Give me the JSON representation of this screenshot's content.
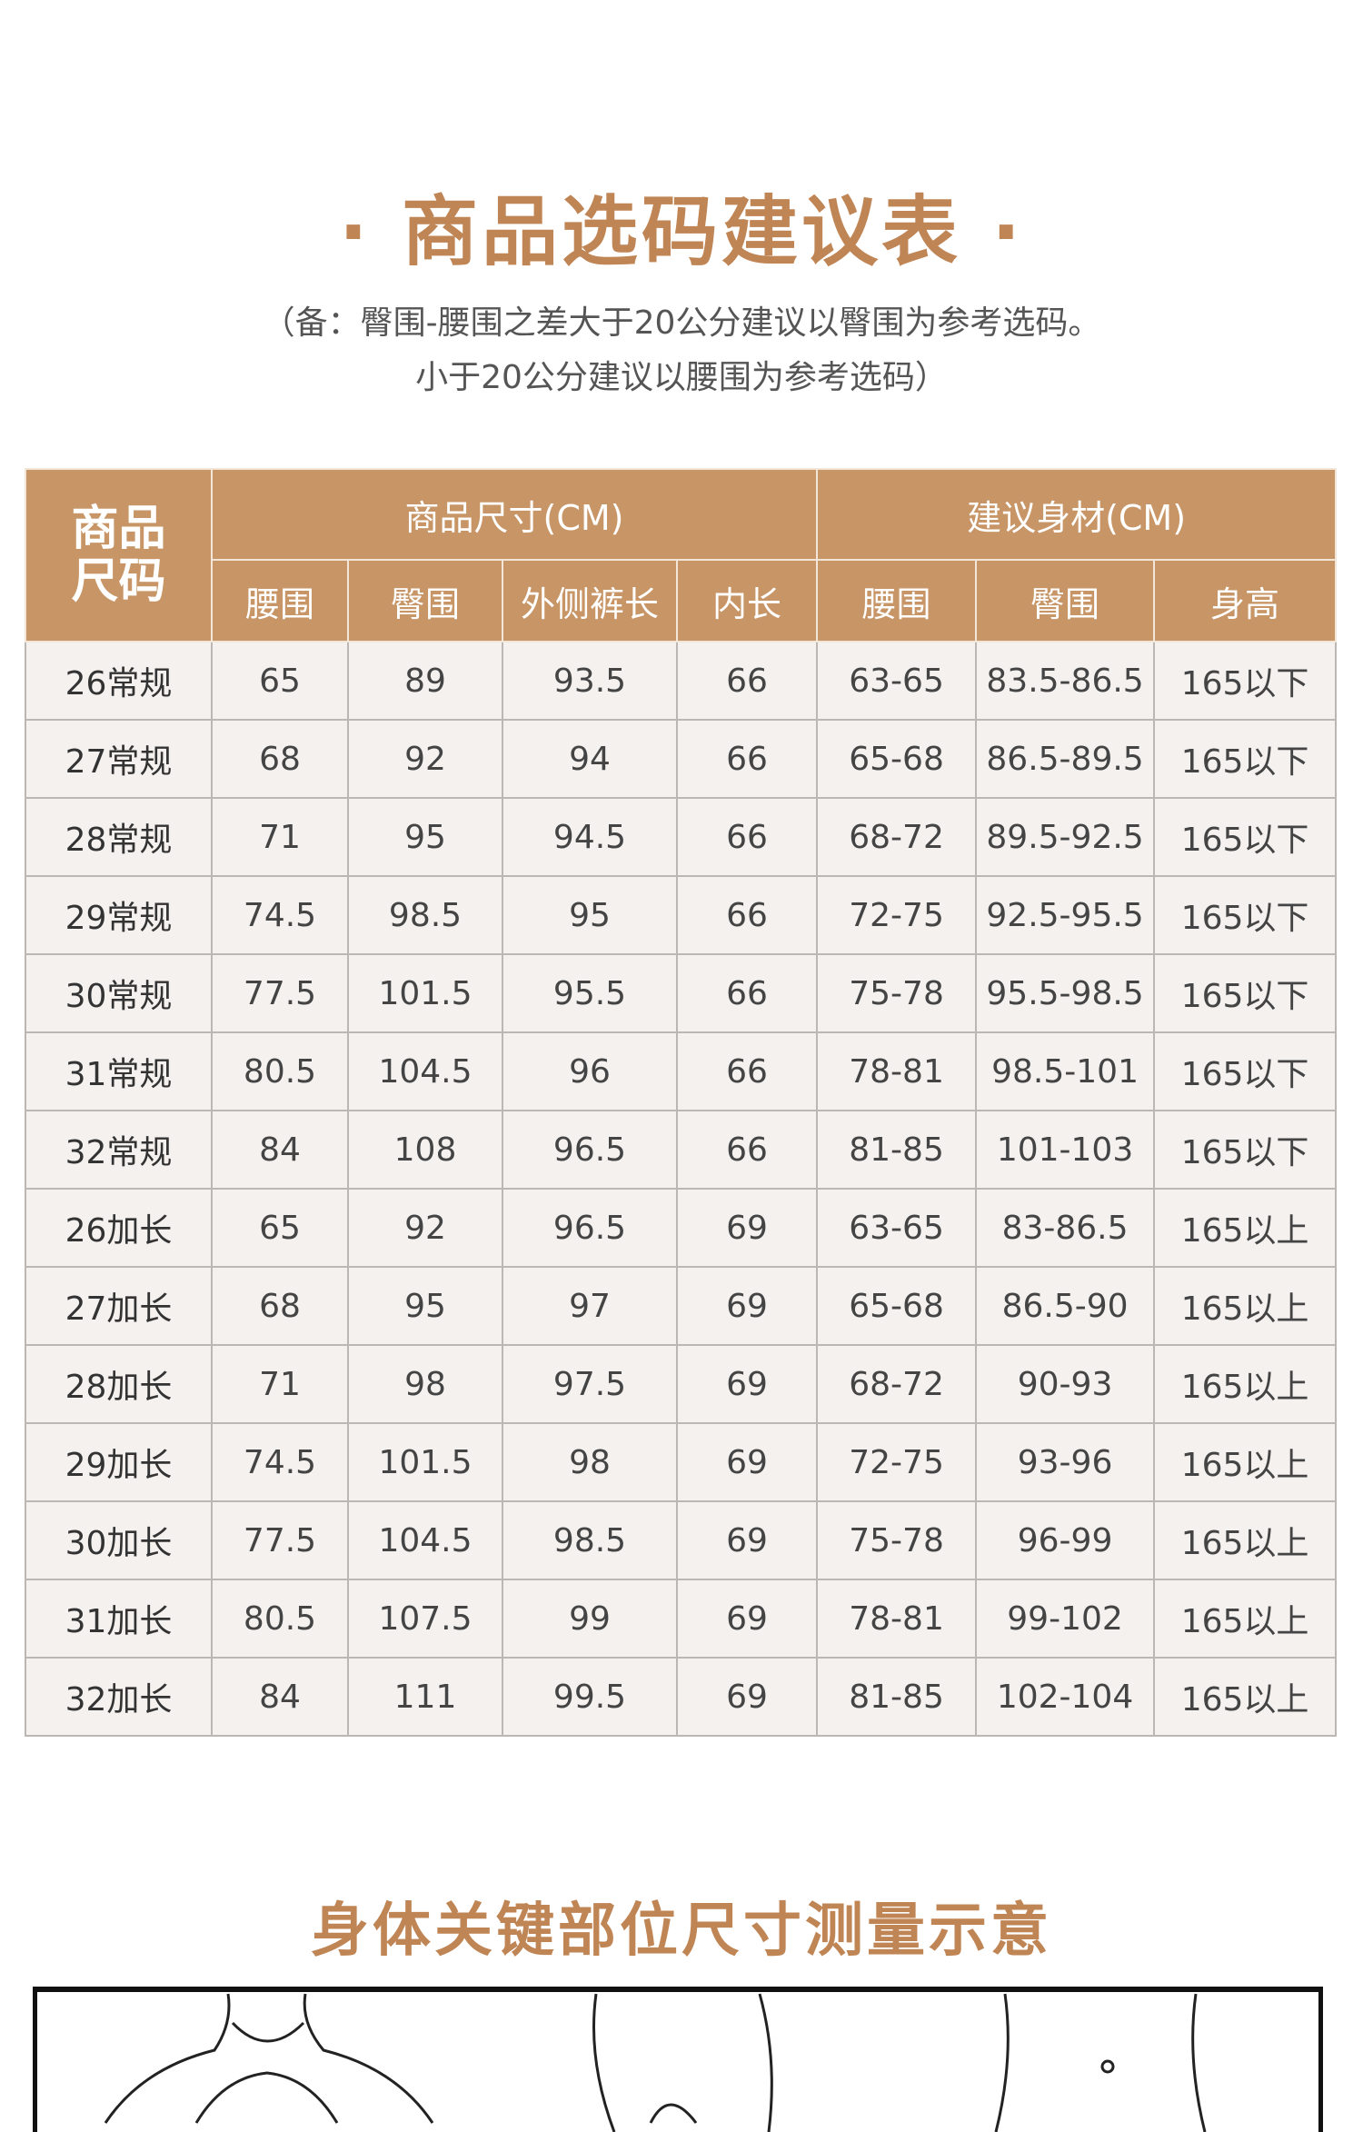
{
  "title": "商品选码建议表",
  "title_dot": "·",
  "note_line1": "（备：臀围-腰围之差大于20公分建议以臀围为参考选码。",
  "note_line2": "小于20公分建议以腰围为参考选码）",
  "table": {
    "corner_line1": "商品",
    "corner_line2": "尺码",
    "group_product": "商品尺寸(CM)",
    "group_body": "建议身材(CM)",
    "sub_headers": [
      "腰围",
      "臀围",
      "外侧裤长",
      "内长",
      "腰围",
      "臀围",
      "身高"
    ],
    "rows": [
      [
        "26常规",
        "65",
        "89",
        "93.5",
        "66",
        "63-65",
        "83.5-86.5",
        "165以下"
      ],
      [
        "27常规",
        "68",
        "92",
        "94",
        "66",
        "65-68",
        "86.5-89.5",
        "165以下"
      ],
      [
        "28常规",
        "71",
        "95",
        "94.5",
        "66",
        "68-72",
        "89.5-92.5",
        "165以下"
      ],
      [
        "29常规",
        "74.5",
        "98.5",
        "95",
        "66",
        "72-75",
        "92.5-95.5",
        "165以下"
      ],
      [
        "30常规",
        "77.5",
        "101.5",
        "95.5",
        "66",
        "75-78",
        "95.5-98.5",
        "165以下"
      ],
      [
        "31常规",
        "80.5",
        "104.5",
        "96",
        "66",
        "78-81",
        "98.5-101",
        "165以下"
      ],
      [
        "32常规",
        "84",
        "108",
        "96.5",
        "66",
        "81-85",
        "101-103",
        "165以下"
      ],
      [
        "26加长",
        "65",
        "92",
        "96.5",
        "69",
        "63-65",
        "83-86.5",
        "165以上"
      ],
      [
        "27加长",
        "68",
        "95",
        "97",
        "69",
        "65-68",
        "86.5-90",
        "165以上"
      ],
      [
        "28加长",
        "71",
        "98",
        "97.5",
        "69",
        "68-72",
        "90-93",
        "165以上"
      ],
      [
        "29加长",
        "74.5",
        "101.5",
        "98",
        "69",
        "72-75",
        "93-96",
        "165以上"
      ],
      [
        "30加长",
        "77.5",
        "104.5",
        "98.5",
        "69",
        "75-78",
        "96-99",
        "165以上"
      ],
      [
        "31加长",
        "80.5",
        "107.5",
        "99",
        "69",
        "78-81",
        "99-102",
        "165以上"
      ],
      [
        "32加长",
        "84",
        "111",
        "99.5",
        "69",
        "81-85",
        "102-104",
        "165以上"
      ]
    ]
  },
  "section2_title": "身体关键部位尺寸测量示意",
  "colors": {
    "accent": "#c08555",
    "header_bg": "#c79566",
    "cell_bg": "#f4f1ef"
  }
}
